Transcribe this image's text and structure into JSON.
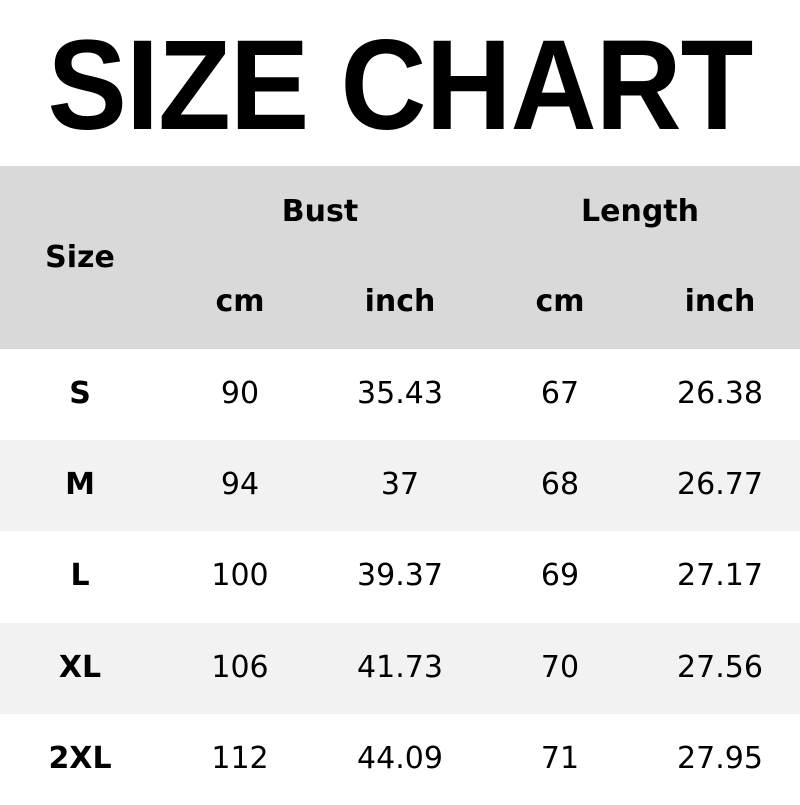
{
  "title": "SIZE CHART",
  "header": {
    "size": "Size",
    "bust": "Bust",
    "length": "Length",
    "units": [
      "cm",
      "inch",
      "cm",
      "inch"
    ]
  },
  "rows": [
    [
      "S",
      "90",
      "35.43",
      "67",
      "26.38"
    ],
    [
      "M",
      "94",
      "37",
      "68",
      "26.77"
    ],
    [
      "L",
      "100",
      "39.37",
      "69",
      "27.17"
    ],
    [
      "XL",
      "106",
      "41.73",
      "70",
      "27.56"
    ],
    [
      "2XL",
      "112",
      "44.09",
      "71",
      "27.95"
    ]
  ],
  "colors": {
    "header_bg": "#d9d9d9",
    "row_alt_bg": "#f2f2f2",
    "row_bg": "#ffffff"
  }
}
